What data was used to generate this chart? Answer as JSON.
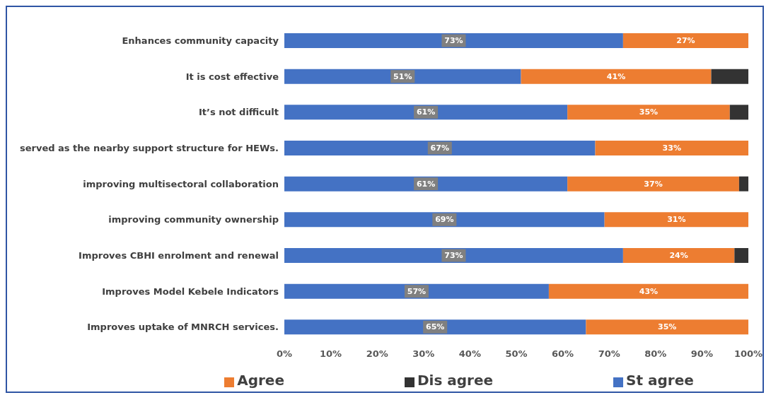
{
  "chart_data": {
    "type": "bar",
    "orientation": "horizontal",
    "stacked": true,
    "categories": [
      "Enhances community capacity",
      "It is cost effective",
      "It’s not difficult",
      "served as the nearby support structure for HEWs.",
      "improving multisectoral collaboration",
      "improving community  ownership",
      "Improves CBHI enrolment and renewal",
      "Improves Model Kebele Indicators",
      "Improves uptake of MNRCH services."
    ],
    "series": [
      {
        "name": "St agree",
        "color": "#4472c4",
        "values": [
          73,
          51,
          61,
          67,
          61,
          69,
          73,
          57,
          65
        ],
        "value_labels": [
          "73%",
          "51%",
          "61%",
          "67%",
          "61%",
          "69%",
          "73%",
          "57%",
          "65%"
        ]
      },
      {
        "name": "Agree",
        "color": "#ed7d31",
        "values": [
          27,
          41,
          35,
          33,
          37,
          31,
          24,
          43,
          35
        ],
        "value_labels": [
          "27%",
          "41%",
          "35%",
          "33%",
          "37%",
          "31%",
          "24%",
          "43%",
          "35%"
        ]
      },
      {
        "name": "Dis agree",
        "color": "#333333",
        "values": [
          null,
          8,
          4,
          null,
          2,
          null,
          3,
          null,
          null
        ]
      }
    ],
    "xlim": [
      0,
      100
    ],
    "xticks": [
      {
        "value": 0,
        "label": "0%"
      },
      {
        "value": 10,
        "label": "10%"
      },
      {
        "value": 20,
        "label": "20%"
      },
      {
        "value": 30,
        "label": "30%"
      },
      {
        "value": 40,
        "label": "40%"
      },
      {
        "value": 50,
        "label": "50%"
      },
      {
        "value": 60,
        "label": "60%"
      },
      {
        "value": 70,
        "label": "70%"
      },
      {
        "value": 80,
        "label": "80%"
      },
      {
        "value": 90,
        "label": "90%"
      },
      {
        "value": 100,
        "label": "100%"
      }
    ],
    "grid": false,
    "legend": "bottom"
  }
}
